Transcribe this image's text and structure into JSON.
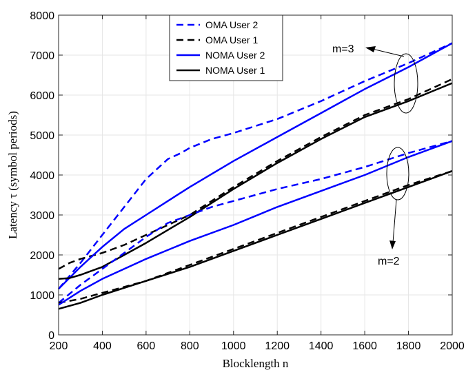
{
  "chart_data": {
    "type": "line",
    "xlabel": "Blocklength n",
    "ylabel": "Latency τ (symbol periods)",
    "xlim": [
      200,
      2000
    ],
    "ylim": [
      0,
      8000
    ],
    "xticks": [
      200,
      400,
      600,
      800,
      1000,
      1200,
      1400,
      1600,
      1800,
      2000
    ],
    "yticks": [
      0,
      1000,
      2000,
      3000,
      4000,
      5000,
      6000,
      7000,
      8000
    ],
    "grid": true,
    "legend_position": "top-center",
    "legend": [
      "OMA User 2",
      "OMA User 1",
      "NOMA User 2",
      "NOMA User 1"
    ],
    "annotations": [
      "m=3",
      "m=2"
    ],
    "series": [
      {
        "name": "OMA User 2",
        "group": "m=3",
        "color": "#0000ff",
        "dash": true,
        "x": [
          200,
          300,
          400,
          500,
          600,
          700,
          760,
          800,
          900,
          1000,
          1200,
          1400,
          1600,
          1800,
          2000
        ],
        "y": [
          1150,
          1800,
          2500,
          3200,
          3900,
          4400,
          4550,
          4680,
          4900,
          5050,
          5400,
          5850,
          6350,
          6800,
          7300
        ]
      },
      {
        "name": "OMA User 1",
        "group": "m=3",
        "color": "#000000",
        "dash": true,
        "x": [
          200,
          250,
          300,
          400,
          500,
          600,
          800,
          1000,
          1200,
          1400,
          1600,
          1800,
          2000
        ],
        "y": [
          1650,
          1800,
          1900,
          2050,
          2250,
          2500,
          3000,
          3700,
          4350,
          4950,
          5500,
          5900,
          6400
        ]
      },
      {
        "name": "NOMA User 2",
        "group": "m=3",
        "color": "#0000ff",
        "dash": false,
        "x": [
          200,
          300,
          400,
          500,
          600,
          700,
          800,
          1000,
          1200,
          1400,
          1600,
          1800,
          2000
        ],
        "y": [
          1150,
          1700,
          2200,
          2650,
          3000,
          3350,
          3700,
          4350,
          4950,
          5550,
          6150,
          6700,
          7300
        ]
      },
      {
        "name": "NOMA User 1",
        "group": "m=3",
        "color": "#000000",
        "dash": false,
        "x": [
          200,
          250,
          300,
          400,
          500,
          600,
          800,
          1000,
          1200,
          1400,
          1600,
          1800,
          2000
        ],
        "y": [
          1400,
          1420,
          1500,
          1700,
          2000,
          2300,
          2950,
          3650,
          4300,
          4900,
          5450,
          5850,
          6300
        ]
      },
      {
        "name": "OMA User 2",
        "group": "m=2",
        "color": "#0000ff",
        "dash": true,
        "x": [
          200,
          300,
          400,
          500,
          600,
          700,
          800,
          900,
          1000,
          1200,
          1400,
          1600,
          1800,
          2000
        ],
        "y": [
          800,
          1250,
          1650,
          2050,
          2450,
          2800,
          3000,
          3200,
          3350,
          3650,
          3900,
          4200,
          4550,
          4850
        ]
      },
      {
        "name": "OMA User 1",
        "group": "m=2",
        "color": "#000000",
        "dash": true,
        "x": [
          200,
          300,
          400,
          600,
          800,
          1000,
          1200,
          1400,
          1600,
          1800,
          2000
        ],
        "y": [
          800,
          900,
          1050,
          1350,
          1750,
          2150,
          2550,
          2950,
          3350,
          3750,
          4100
        ]
      },
      {
        "name": "NOMA User 2",
        "group": "m=2",
        "color": "#0000ff",
        "dash": false,
        "x": [
          200,
          300,
          400,
          600,
          800,
          1000,
          1200,
          1400,
          1600,
          1800,
          2000
        ],
        "y": [
          750,
          1100,
          1400,
          1900,
          2350,
          2750,
          3200,
          3600,
          4000,
          4450,
          4850
        ]
      },
      {
        "name": "NOMA User 1",
        "group": "m=2",
        "color": "#000000",
        "dash": false,
        "x": [
          200,
          300,
          400,
          600,
          800,
          1000,
          1200,
          1400,
          1600,
          1800,
          2000
        ],
        "y": [
          650,
          800,
          1000,
          1350,
          1700,
          2100,
          2500,
          2900,
          3300,
          3700,
          4100
        ]
      }
    ]
  }
}
